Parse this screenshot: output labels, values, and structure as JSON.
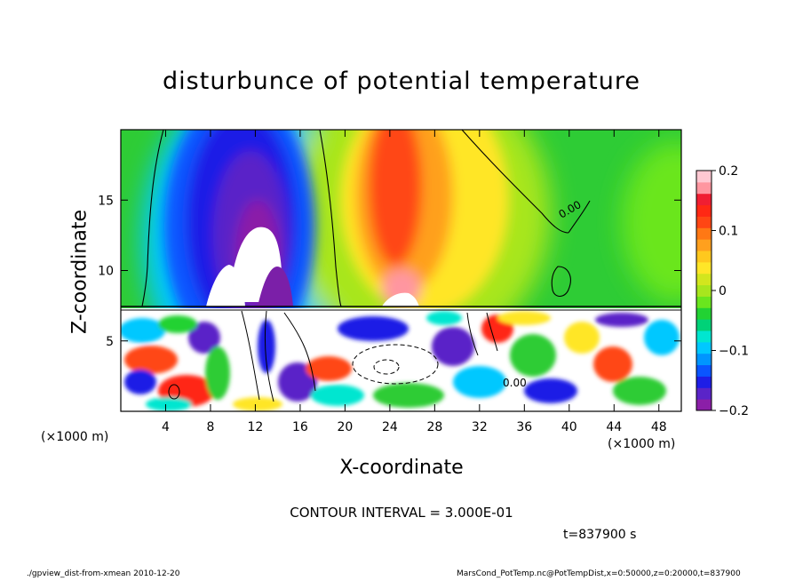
{
  "title": "disturbunce of potential temperature",
  "chart_data": {
    "type": "heatmap",
    "title": "disturbunce of potential temperature",
    "xlabel": "X-coordinate",
    "ylabel": "Z-coordinate",
    "x_unit": "(×1000 m)",
    "x_ticks": [
      4,
      8,
      12,
      16,
      20,
      24,
      28,
      32,
      36,
      40,
      44,
      48
    ],
    "y_ticks": [
      5,
      10,
      15
    ],
    "xlim": [
      0,
      50
    ],
    "ylim": [
      0,
      20
    ],
    "colorbar": {
      "ticks": [
        "0.2",
        "0.1",
        "0",
        "−0.1",
        "−0.2"
      ],
      "tick_values": [
        0.2,
        0.1,
        0,
        -0.1,
        -0.2
      ],
      "range": [
        -0.2,
        0.2
      ],
      "colors": [
        "#8b1fa8",
        "#5a24c8",
        "#1e1ee6",
        "#0a55ff",
        "#0095ff",
        "#00c8ff",
        "#00e6d0",
        "#00d278",
        "#22d233",
        "#6ae61e",
        "#a8e61e",
        "#d2e61e",
        "#ffe628",
        "#ffc81e",
        "#ffa01e",
        "#ff7814",
        "#ff4614",
        "#ff2814",
        "#f01e32",
        "#ff96a0",
        "#ffc8d2"
      ]
    },
    "contour_label": "0.00",
    "inversion_height": 7.3
  },
  "contour_interval": "CONTOUR INTERVAL = 3.000E-01",
  "time": "t=837900 s",
  "footer_left": "./gpview_dist-from-xmean  2010-12-20",
  "footer_right": "MarsCond_PotTemp.nc@PotTempDist,x=0:50000,z=0:20000,t=837900"
}
